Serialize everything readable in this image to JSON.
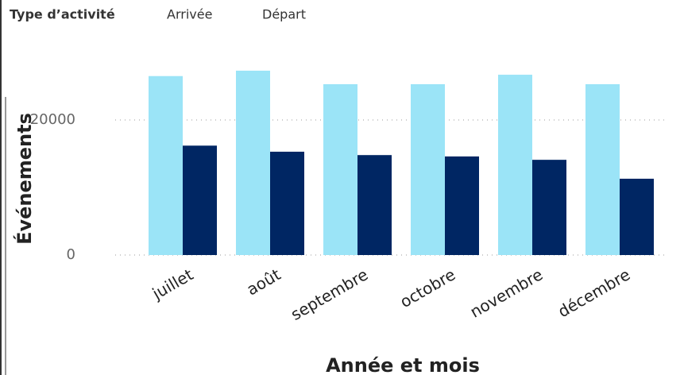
{
  "chart_data": {
    "type": "bar",
    "legend_title": "Type d’activité",
    "x_label": "Année et mois",
    "y_label": "Événements",
    "categories": [
      "juillet",
      "août",
      "septembre",
      "octobre",
      "novembre",
      "décembre"
    ],
    "series": [
      {
        "name": "Arrivée",
        "color": "#9be4f7",
        "values": [
          26500,
          27300,
          25300,
          25300,
          26700,
          25300
        ]
      },
      {
        "name": "Départ",
        "color": "#002663",
        "values": [
          16200,
          15300,
          14800,
          14600,
          14100,
          11300
        ]
      }
    ],
    "ylim": [
      0,
      30000
    ],
    "yticks": [
      0,
      20000
    ],
    "grid": true,
    "legend": "top-left"
  }
}
